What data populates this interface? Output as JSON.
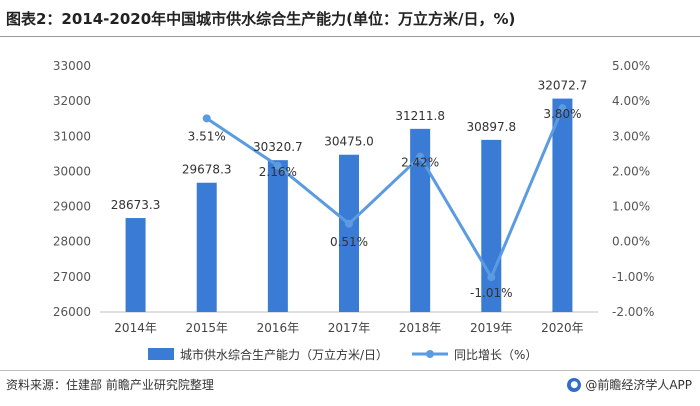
{
  "title": "图表2：2014-2020年中国城市供水综合生产能力(单位：万立方米/日，%)",
  "source": "资料来源：住建部 前瞻产业研究院整理",
  "brand": "@前瞻经济学人APP",
  "colors": {
    "bar": "#3a7bd5",
    "line": "#5b9be0"
  },
  "chart_data": {
    "type": "bar",
    "categories": [
      "2014年",
      "2015年",
      "2016年",
      "2017年",
      "2018年",
      "2019年",
      "2020年"
    ],
    "series": [
      {
        "name": "城市供水综合生产能力（万立方米/日）",
        "type": "bar",
        "axis": "left",
        "values": [
          28673.3,
          29678.3,
          30320.7,
          30475.0,
          31211.8,
          30897.8,
          32072.7
        ],
        "labels": [
          "28673.3",
          "29678.3",
          "30320.7",
          "30475.0",
          "31211.8",
          "30897.8",
          "32072.7"
        ]
      },
      {
        "name": "同比增长（%）",
        "type": "line",
        "axis": "right",
        "values": [
          null,
          3.51,
          2.16,
          0.51,
          2.42,
          -1.01,
          3.8
        ],
        "labels": [
          "",
          "3.51%",
          "2.16%",
          "0.51%",
          "2.42%",
          "-1.01%",
          "3.80%"
        ]
      }
    ],
    "y_left": {
      "min": 26000,
      "max": 33000,
      "step": 1000,
      "tick_labels": [
        "26000",
        "27000",
        "28000",
        "29000",
        "30000",
        "31000",
        "32000",
        "33000"
      ]
    },
    "y_right": {
      "min": -2,
      "max": 5,
      "step": 1,
      "tick_labels": [
        "-2.00%",
        "-1.00%",
        "0.00%",
        "1.00%",
        "2.00%",
        "3.00%",
        "4.00%",
        "5.00%"
      ]
    },
    "legend_position": "bottom-center",
    "grid": false
  }
}
